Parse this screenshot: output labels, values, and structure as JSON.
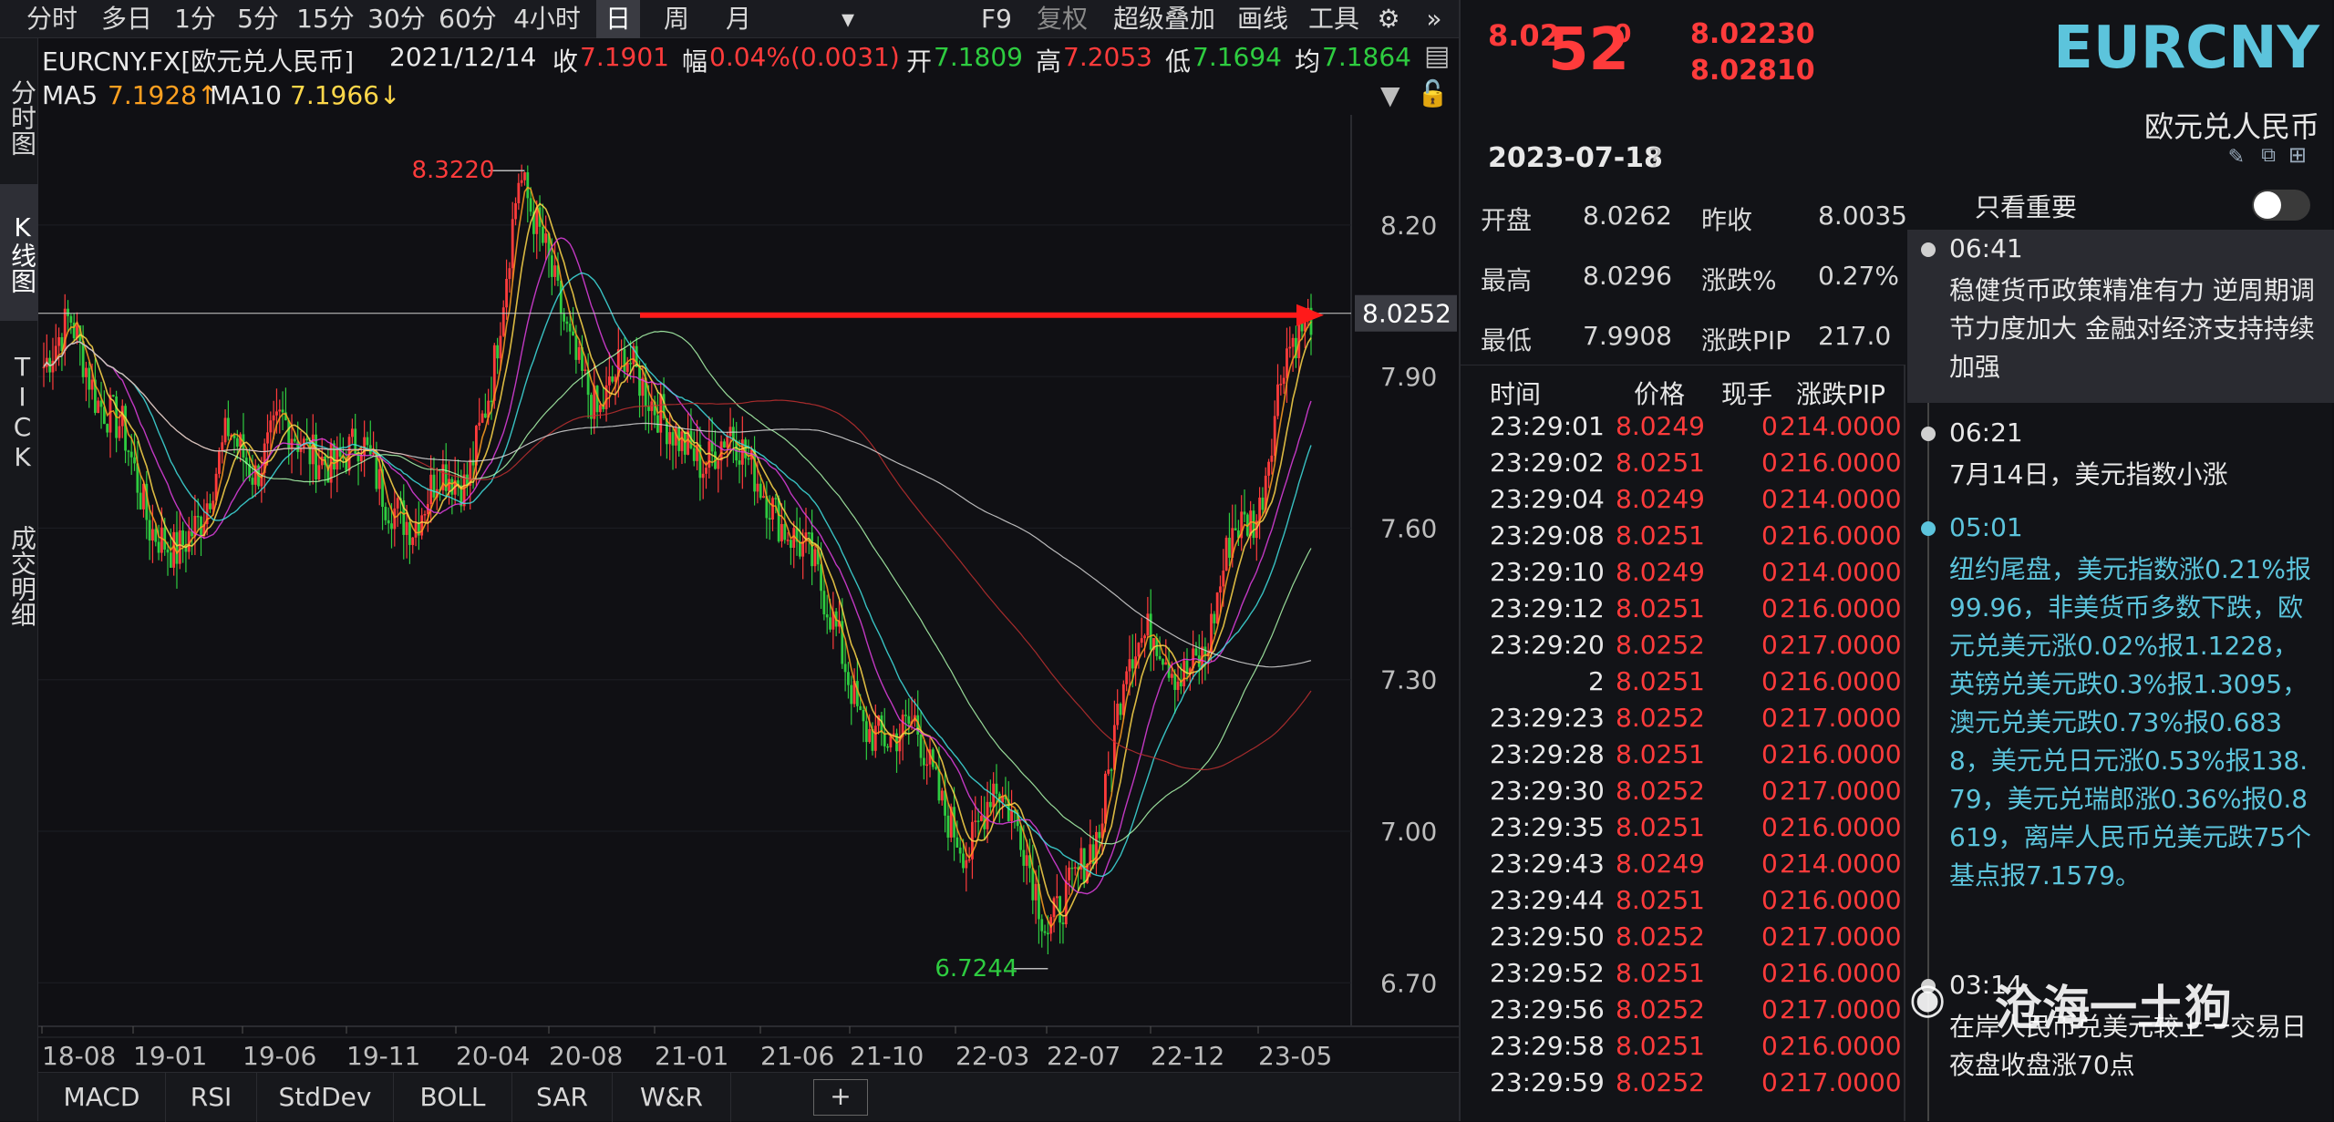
{
  "toolbar": {
    "periods": [
      "分时",
      "多日",
      "1分",
      "5分",
      "15分",
      "30分",
      "60分",
      "4小时",
      "日",
      "周",
      "月"
    ],
    "active_period": "日",
    "right_items": [
      "F9",
      "复权",
      "超级叠加",
      "画线",
      "工具"
    ]
  },
  "left_tabs": [
    "分时图",
    "K线图",
    "TICK",
    "成交明细"
  ],
  "info": {
    "symbol": "EURCNY.FX[欧元兑人民币]",
    "date": "2021/12/14",
    "close_label": "收",
    "close": "7.1901",
    "range_label": "幅",
    "range": "0.04%(0.0031)",
    "open_label": "开",
    "open": "7.1809",
    "high_label": "高",
    "high": "7.2053",
    "low_label": "低",
    "low": "7.1694",
    "avg_label": "均",
    "avg": "7.1864"
  },
  "ma": {
    "ma5_label": "MA5",
    "ma5": "7.1928↑",
    "ma10_label": "MA10",
    "ma10": "7.1966↓"
  },
  "chart_data": {
    "type": "candlestick",
    "y_ticks": [
      "8.20",
      "7.90",
      "7.60",
      "7.30",
      "7.00",
      "6.70"
    ],
    "y_tick_values": [
      8.2,
      7.9,
      7.6,
      7.3,
      7.0,
      6.7
    ],
    "ylim": [
      6.65,
      8.4
    ],
    "x_ticks": [
      "18-08",
      "19-01",
      "19-06",
      "19-11",
      "20-04",
      "20-08",
      "21-01",
      "21-06",
      "21-10",
      "22-03",
      "22-07",
      "22-12",
      "23-05"
    ],
    "max_label": "8.3220",
    "max_value": 8.322,
    "min_label": "6.7244",
    "min_value": 6.7244,
    "last_price_label": "8.0252",
    "last_price": 8.0252,
    "close_path": [
      7.92,
      8.02,
      7.85,
      7.8,
      7.6,
      7.55,
      7.62,
      7.8,
      7.7,
      7.82,
      7.75,
      7.72,
      7.78,
      7.65,
      7.6,
      7.72,
      7.68,
      7.9,
      8.3,
      8.15,
      7.95,
      7.82,
      7.95,
      7.85,
      7.78,
      7.72,
      7.8,
      7.7,
      7.6,
      7.55,
      7.4,
      7.2,
      7.18,
      7.22,
      7.05,
      6.95,
      7.1,
      7.0,
      6.8,
      6.9,
      7.0,
      7.35,
      7.4,
      7.3,
      7.35,
      7.6,
      7.62,
      7.95,
      8.02
    ]
  },
  "bottom_tabs": [
    "MACD",
    "RSI",
    "StdDev",
    "BOLL",
    "SAR",
    "W&R"
  ],
  "right": {
    "price_small": "8.02",
    "price_big": "52",
    "price_sup": "0",
    "bid": "8.02230",
    "ask": "8.02810",
    "symbol": "EURCNY",
    "name": "欧元兑人民币",
    "date": "2023-07-18",
    "quote": [
      {
        "k1": "开盘",
        "v1": "8.0262",
        "k2": "昨收",
        "v2": "8.0035"
      },
      {
        "k1": "最高",
        "v1": "8.0296",
        "k2": "涨跌%",
        "v2": "0.27%"
      },
      {
        "k1": "最低",
        "v1": "7.9908",
        "k2": "涨跌PIP",
        "v2": "217.0"
      }
    ],
    "tick_headers": [
      "时间",
      "价格",
      "现手",
      "涨跌PIP"
    ],
    "ticks": [
      [
        "23:29:01",
        "8.0249",
        "0",
        "214.0000"
      ],
      [
        "23:29:02",
        "8.0251",
        "0",
        "216.0000"
      ],
      [
        "23:29:04",
        "8.0249",
        "0",
        "214.0000"
      ],
      [
        "23:29:08",
        "8.0251",
        "0",
        "216.0000"
      ],
      [
        "23:29:10",
        "8.0249",
        "0",
        "214.0000"
      ],
      [
        "23:29:12",
        "8.0251",
        "0",
        "216.0000"
      ],
      [
        "23:29:20",
        "8.0252",
        "0",
        "217.0000"
      ],
      [
        "2",
        "8.0251",
        "0",
        "216.0000"
      ],
      [
        "23:29:23",
        "8.0252",
        "0",
        "217.0000"
      ],
      [
        "23:29:28",
        "8.0251",
        "0",
        "216.0000"
      ],
      [
        "23:29:30",
        "8.0252",
        "0",
        "217.0000"
      ],
      [
        "23:29:35",
        "8.0251",
        "0",
        "216.0000"
      ],
      [
        "23:29:43",
        "8.0249",
        "0",
        "214.0000"
      ],
      [
        "23:29:44",
        "8.0251",
        "0",
        "216.0000"
      ],
      [
        "23:29:50",
        "8.0252",
        "0",
        "217.0000"
      ],
      [
        "23:29:52",
        "8.0251",
        "0",
        "216.0000"
      ],
      [
        "23:29:56",
        "8.0252",
        "0",
        "217.0000"
      ],
      [
        "23:29:58",
        "8.0251",
        "0",
        "216.0000"
      ],
      [
        "23:29:59",
        "8.0252",
        "0",
        "217.0000"
      ]
    ],
    "important_toggle": "只看重要",
    "news": [
      {
        "time": "06:41",
        "text": "稳健货币政策精准有力 逆周期调节力度加大 金融对经济支持持续加强",
        "style": "highlight"
      },
      {
        "time": "06:21",
        "text": "7月14日，美元指数小涨",
        "style": "normal"
      },
      {
        "time": "05:01",
        "text": "纽约尾盘，美元指数涨0.21%报99.96，非美货币多数下跌，欧元兑美元涨0.02%报1.1228，英镑兑美元跌0.3%报1.3095，澳元兑美元跌0.73%报0.6838，美元兑日元涨0.53%报138.79，美元兑瑞郎涨0.36%报0.8619，离岸人民币兑美元跌75个基点报7.1579。",
        "style": "cyan"
      },
      {
        "time": "03:14",
        "text": "在岸人民币兑美元较上一交易日夜盘收盘涨70点",
        "style": "normal"
      }
    ],
    "watermark": "沧海一土狗"
  }
}
